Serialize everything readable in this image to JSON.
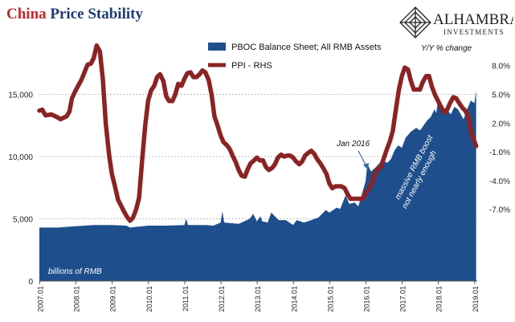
{
  "title": {
    "part1": "China",
    "part2": "Price Stability"
  },
  "logo": {
    "name": "ALHAMBRA",
    "sub": "INVESTMENTS"
  },
  "colors": {
    "balance": "#1f4e8c",
    "ppi": "#8b2324",
    "title_red": "#c0272d",
    "title_blue": "#1f3b73",
    "grid": "#aaaaaa"
  },
  "chart_data": {
    "type": "area",
    "title": "China Price Stability",
    "xlabel": "",
    "ylabel": "billions of RMB",
    "y2label": "Y/Y % change",
    "x_ticks": [
      "2007.01",
      "2008.01",
      "2009.01",
      "2010.01",
      "2011.01",
      "2012.01",
      "2013.01",
      "2014.01",
      "2015.01",
      "2016.01",
      "2017.01",
      "2018.01",
      "2019.01"
    ],
    "ylim": [
      0,
      20000
    ],
    "y_ticks": [
      "0",
      "5,000",
      "10,000",
      "15,000"
    ],
    "y_tick_values": [
      0,
      5000,
      10000,
      15000
    ],
    "y2lim": [
      -14.5,
      11.5
    ],
    "y2_ticks": [
      "-7.0%",
      "-4.0%",
      "-1.0%",
      "2.0%",
      "5.0%",
      "8.0%"
    ],
    "y2_tick_values": [
      -7,
      -4,
      -1,
      2,
      5,
      8
    ],
    "grid": true,
    "legend_position": "top-center",
    "annotations": [
      "Jan 2016",
      "massive RMB boost not nearly enough"
    ],
    "series": [
      {
        "name": "PBOC Balance Sheet; All RMB Assets",
        "type": "area",
        "axis": "left",
        "points": [
          [
            2007.0,
            4300
          ],
          [
            2007.5,
            4300
          ],
          [
            2008.0,
            4400
          ],
          [
            2008.5,
            4500
          ],
          [
            2009.0,
            4500
          ],
          [
            2009.4,
            4450
          ],
          [
            2009.5,
            4300
          ],
          [
            2010.0,
            4450
          ],
          [
            2010.5,
            4450
          ],
          [
            2011.0,
            4500
          ],
          [
            2011.05,
            5000
          ],
          [
            2011.1,
            4500
          ],
          [
            2011.6,
            4500
          ],
          [
            2011.8,
            4450
          ],
          [
            2012.0,
            4700
          ],
          [
            2012.05,
            5600
          ],
          [
            2012.1,
            4700
          ],
          [
            2012.5,
            4600
          ],
          [
            2012.8,
            5000
          ],
          [
            2012.9,
            5400
          ],
          [
            2013.0,
            4800
          ],
          [
            2013.1,
            5200
          ],
          [
            2013.15,
            4800
          ],
          [
            2013.3,
            4700
          ],
          [
            2013.4,
            5500
          ],
          [
            2013.6,
            4900
          ],
          [
            2013.8,
            4900
          ],
          [
            2014.0,
            4500
          ],
          [
            2014.1,
            4900
          ],
          [
            2014.3,
            4700
          ],
          [
            2014.5,
            4900
          ],
          [
            2014.7,
            5100
          ],
          [
            2014.9,
            5700
          ],
          [
            2015.0,
            5500
          ],
          [
            2015.2,
            5900
          ],
          [
            2015.3,
            5800
          ],
          [
            2015.45,
            6900
          ],
          [
            2015.55,
            6200
          ],
          [
            2015.7,
            6300
          ],
          [
            2015.8,
            6000
          ],
          [
            2016.0,
            8000
          ],
          [
            2016.05,
            9400
          ],
          [
            2016.15,
            8800
          ],
          [
            2016.3,
            9200
          ],
          [
            2016.45,
            9700
          ],
          [
            2016.6,
            9500
          ],
          [
            2016.7,
            9800
          ],
          [
            2016.8,
            10500
          ],
          [
            2016.9,
            10900
          ],
          [
            2017.0,
            10700
          ],
          [
            2017.1,
            11500
          ],
          [
            2017.25,
            12000
          ],
          [
            2017.4,
            12300
          ],
          [
            2017.5,
            12100
          ],
          [
            2017.6,
            12500
          ],
          [
            2017.7,
            12900
          ],
          [
            2017.8,
            13200
          ],
          [
            2017.9,
            13800
          ],
          [
            2017.95,
            13500
          ],
          [
            2018.0,
            14600
          ],
          [
            2018.1,
            13600
          ],
          [
            2018.2,
            13900
          ],
          [
            2018.35,
            13400
          ],
          [
            2018.45,
            14000
          ],
          [
            2018.55,
            13800
          ],
          [
            2018.7,
            13000
          ],
          [
            2018.8,
            13800
          ],
          [
            2018.9,
            14500
          ],
          [
            2019.0,
            14300
          ],
          [
            2019.05,
            15300
          ]
        ]
      },
      {
        "name": "PPI - RHS",
        "type": "line",
        "axis": "right",
        "points": [
          [
            2007.0,
            3.3
          ],
          [
            2007.08,
            3.4
          ],
          [
            2007.17,
            2.8
          ],
          [
            2007.33,
            2.9
          ],
          [
            2007.5,
            2.6
          ],
          [
            2007.58,
            2.4
          ],
          [
            2007.75,
            2.7
          ],
          [
            2007.83,
            3.2
          ],
          [
            2007.9,
            4.6
          ],
          [
            2008.0,
            5.4
          ],
          [
            2008.17,
            6.6
          ],
          [
            2008.33,
            8.1
          ],
          [
            2008.42,
            8.2
          ],
          [
            2008.5,
            8.8
          ],
          [
            2008.58,
            10.1
          ],
          [
            2008.67,
            9.5
          ],
          [
            2008.75,
            6.6
          ],
          [
            2008.83,
            2.0
          ],
          [
            2008.92,
            -1.2
          ],
          [
            2009.0,
            -3.3
          ],
          [
            2009.08,
            -4.5
          ],
          [
            2009.17,
            -6.0
          ],
          [
            2009.25,
            -6.6
          ],
          [
            2009.33,
            -7.2
          ],
          [
            2009.42,
            -7.8
          ],
          [
            2009.5,
            -8.2
          ],
          [
            2009.58,
            -7.9
          ],
          [
            2009.67,
            -7.0
          ],
          [
            2009.75,
            -5.8
          ],
          [
            2009.83,
            -2.1
          ],
          [
            2009.92,
            1.7
          ],
          [
            2010.0,
            4.3
          ],
          [
            2010.08,
            5.4
          ],
          [
            2010.17,
            5.9
          ],
          [
            2010.25,
            6.8
          ],
          [
            2010.33,
            7.1
          ],
          [
            2010.42,
            6.4
          ],
          [
            2010.5,
            4.8
          ],
          [
            2010.58,
            4.3
          ],
          [
            2010.67,
            4.3
          ],
          [
            2010.75,
            5.0
          ],
          [
            2010.83,
            6.1
          ],
          [
            2010.92,
            5.9
          ],
          [
            2011.0,
            6.6
          ],
          [
            2011.08,
            7.2
          ],
          [
            2011.17,
            7.3
          ],
          [
            2011.25,
            6.8
          ],
          [
            2011.33,
            6.8
          ],
          [
            2011.42,
            7.1
          ],
          [
            2011.5,
            7.5
          ],
          [
            2011.58,
            7.3
          ],
          [
            2011.67,
            6.5
          ],
          [
            2011.75,
            5.0
          ],
          [
            2011.83,
            2.7
          ],
          [
            2011.92,
            1.7
          ],
          [
            2012.0,
            0.7
          ],
          [
            2012.08,
            0.0
          ],
          [
            2012.17,
            -0.3
          ],
          [
            2012.25,
            -0.7
          ],
          [
            2012.33,
            -1.4
          ],
          [
            2012.42,
            -2.1
          ],
          [
            2012.5,
            -2.9
          ],
          [
            2012.58,
            -3.5
          ],
          [
            2012.67,
            -3.6
          ],
          [
            2012.75,
            -2.8
          ],
          [
            2012.83,
            -2.2
          ],
          [
            2012.92,
            -1.9
          ],
          [
            2013.0,
            -1.6
          ],
          [
            2013.08,
            -1.9
          ],
          [
            2013.17,
            -1.9
          ],
          [
            2013.25,
            -2.6
          ],
          [
            2013.33,
            -2.9
          ],
          [
            2013.42,
            -2.7
          ],
          [
            2013.5,
            -2.3
          ],
          [
            2013.58,
            -1.6
          ],
          [
            2013.67,
            -1.3
          ],
          [
            2013.75,
            -1.5
          ],
          [
            2013.83,
            -1.4
          ],
          [
            2013.92,
            -1.4
          ],
          [
            2014.0,
            -1.6
          ],
          [
            2014.08,
            -2.0
          ],
          [
            2014.17,
            -2.3
          ],
          [
            2014.25,
            -2.0
          ],
          [
            2014.33,
            -1.4
          ],
          [
            2014.42,
            -1.1
          ],
          [
            2014.5,
            -0.9
          ],
          [
            2014.58,
            -1.2
          ],
          [
            2014.67,
            -1.8
          ],
          [
            2014.75,
            -2.2
          ],
          [
            2014.83,
            -2.7
          ],
          [
            2014.92,
            -3.3
          ],
          [
            2015.0,
            -4.3
          ],
          [
            2015.08,
            -4.8
          ],
          [
            2015.17,
            -4.6
          ],
          [
            2015.25,
            -4.6
          ],
          [
            2015.33,
            -4.6
          ],
          [
            2015.42,
            -4.8
          ],
          [
            2015.5,
            -5.4
          ],
          [
            2015.58,
            -5.9
          ],
          [
            2015.67,
            -5.9
          ],
          [
            2015.75,
            -5.9
          ],
          [
            2015.83,
            -5.9
          ],
          [
            2015.92,
            -5.9
          ],
          [
            2016.0,
            -5.3
          ],
          [
            2016.08,
            -4.9
          ],
          [
            2016.17,
            -4.3
          ],
          [
            2016.25,
            -3.4
          ],
          [
            2016.33,
            -2.8
          ],
          [
            2016.42,
            -2.6
          ],
          [
            2016.5,
            -1.7
          ],
          [
            2016.58,
            -0.8
          ],
          [
            2016.67,
            0.1
          ],
          [
            2016.75,
            1.2
          ],
          [
            2016.83,
            3.3
          ],
          [
            2016.92,
            5.5
          ],
          [
            2017.0,
            6.9
          ],
          [
            2017.08,
            7.8
          ],
          [
            2017.17,
            7.6
          ],
          [
            2017.25,
            6.4
          ],
          [
            2017.33,
            5.5
          ],
          [
            2017.42,
            5.5
          ],
          [
            2017.5,
            5.5
          ],
          [
            2017.58,
            6.3
          ],
          [
            2017.67,
            6.9
          ],
          [
            2017.75,
            6.9
          ],
          [
            2017.83,
            5.8
          ],
          [
            2017.92,
            4.9
          ],
          [
            2018.0,
            4.3
          ],
          [
            2018.08,
            3.7
          ],
          [
            2018.17,
            3.1
          ],
          [
            2018.25,
            3.4
          ],
          [
            2018.33,
            4.1
          ],
          [
            2018.42,
            4.7
          ],
          [
            2018.5,
            4.6
          ],
          [
            2018.58,
            4.1
          ],
          [
            2018.67,
            3.6
          ],
          [
            2018.75,
            3.3
          ],
          [
            2018.83,
            2.7
          ],
          [
            2018.92,
            0.9
          ],
          [
            2019.0,
            0.1
          ],
          [
            2019.05,
            -0.4
          ]
        ]
      }
    ]
  }
}
